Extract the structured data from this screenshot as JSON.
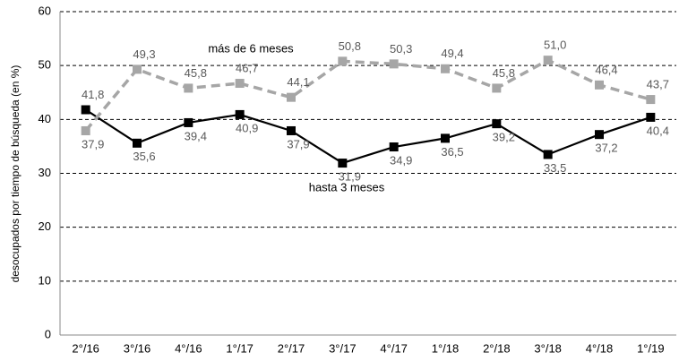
{
  "chart_data": {
    "type": "line",
    "y_label": "desocupados por tiempo de búsqueda (en %)",
    "categories": [
      "2°/16",
      "3°/16",
      "4°/16",
      "1°/17",
      "2°/17",
      "3°/17",
      "4°/17",
      "1°/18",
      "2°/18",
      "3°/18",
      "4°/18",
      "1°/19"
    ],
    "series": [
      {
        "name": "hasta 3 meses",
        "color": "#000000",
        "dashed": false,
        "values": [
          41.8,
          35.6,
          39.4,
          40.9,
          37.9,
          31.9,
          34.9,
          36.5,
          39.2,
          33.5,
          37.2,
          40.4
        ],
        "value_labels": [
          "41,8",
          "35,6",
          "39,4",
          "40,9",
          "37,9",
          "31,9",
          "34,9",
          "36,5",
          "39,2",
          "33,5",
          "37,2",
          "40,4"
        ]
      },
      {
        "name": "más de 6 meses",
        "color": "#a6a6a6",
        "dashed": true,
        "values": [
          37.9,
          49.3,
          45.8,
          46.7,
          44.1,
          50.8,
          50.3,
          49.4,
          45.8,
          51.0,
          46.4,
          43.7
        ],
        "value_labels": [
          "37,9",
          "49,3",
          "45,8",
          "46,7",
          "44,1",
          "50,8",
          "50,3",
          "49,4",
          "45,8",
          "51,0",
          "46,4",
          "43,7"
        ]
      }
    ],
    "ylim": [
      0,
      60
    ],
    "yticks": [
      0,
      10,
      20,
      30,
      40,
      50,
      60
    ],
    "grid": true,
    "legend": "inline"
  }
}
